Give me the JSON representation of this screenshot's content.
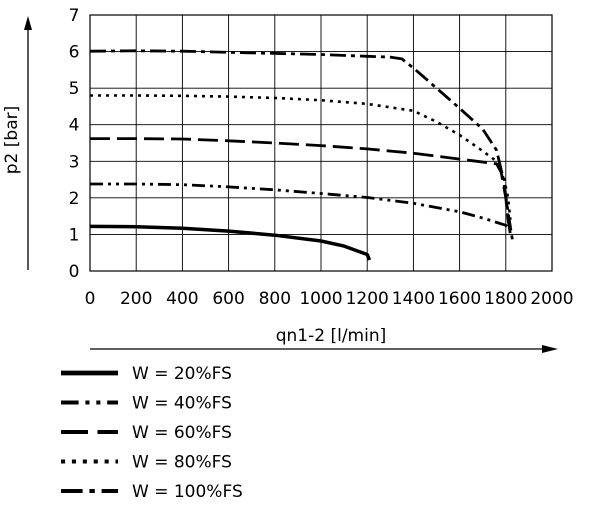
{
  "chart_data": {
    "type": "line",
    "xlabel": "qn1-2 [l/min]",
    "ylabel": "p2 [bar]",
    "xlim": [
      0,
      2000
    ],
    "ylim": [
      0,
      7
    ],
    "xticks": [
      0,
      200,
      400,
      600,
      800,
      1000,
      1200,
      1400,
      1600,
      1800,
      2000
    ],
    "yticks": [
      0,
      1,
      2,
      3,
      4,
      5,
      6,
      7
    ],
    "grid": true,
    "legend_position": "bottom-left",
    "series": [
      {
        "name": "W = 20%FS",
        "style": "solid",
        "x": [
          0,
          200,
          400,
          600,
          800,
          1000,
          1100,
          1200,
          1210
        ],
        "y": [
          1.22,
          1.21,
          1.17,
          1.09,
          0.98,
          0.82,
          0.68,
          0.45,
          0.3
        ]
      },
      {
        "name": "W = 40%FS",
        "style": "dash-dot-dot",
        "x": [
          0,
          200,
          400,
          600,
          800,
          1000,
          1200,
          1400,
          1600,
          1700,
          1800,
          1820
        ],
        "y": [
          2.38,
          2.38,
          2.36,
          2.3,
          2.22,
          2.12,
          2.01,
          1.85,
          1.62,
          1.45,
          1.25,
          1.15
        ]
      },
      {
        "name": "W = 60%FS",
        "style": "long-dash",
        "x": [
          0,
          200,
          400,
          600,
          800,
          1000,
          1200,
          1400,
          1600,
          1760,
          1780,
          1800,
          1810,
          1820
        ],
        "y": [
          3.62,
          3.62,
          3.61,
          3.56,
          3.5,
          3.43,
          3.34,
          3.22,
          3.06,
          2.93,
          2.7,
          2.0,
          1.4,
          1.0
        ]
      },
      {
        "name": "W = 80%FS",
        "style": "dotted",
        "x": [
          0,
          200,
          400,
          600,
          800,
          1000,
          1200,
          1400,
          1500,
          1600,
          1700,
          1760,
          1790,
          1810,
          1820
        ],
        "y": [
          4.8,
          4.8,
          4.79,
          4.77,
          4.73,
          4.67,
          4.57,
          4.38,
          4.08,
          3.72,
          3.28,
          3.0,
          2.6,
          2.0,
          1.4
        ]
      },
      {
        "name": "W = 100%FS",
        "style": "dash-dot",
        "x": [
          0,
          200,
          400,
          600,
          800,
          1000,
          1200,
          1300,
          1350,
          1400,
          1500,
          1600,
          1700,
          1760,
          1790,
          1810,
          1830
        ],
        "y": [
          6.01,
          6.02,
          6.01,
          5.98,
          5.95,
          5.92,
          5.87,
          5.85,
          5.8,
          5.55,
          5.0,
          4.45,
          3.88,
          3.3,
          2.5,
          1.6,
          0.8
        ]
      }
    ]
  }
}
